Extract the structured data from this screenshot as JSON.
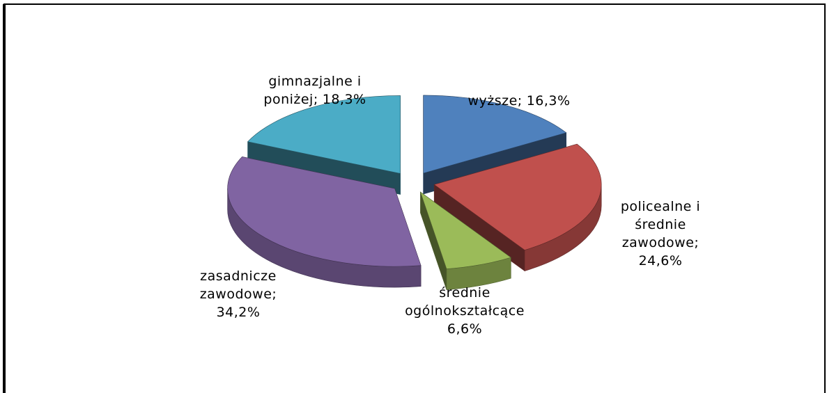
{
  "chart_data": {
    "type": "pie3d",
    "categories": [
      "wyższe;",
      "policealne i średnie zawodowe;",
      "średnie ogólnokształcące",
      "zasadnicze zawodowe;",
      "gimnazjalne i poniżej;"
    ],
    "values": [
      16.3,
      24.6,
      6.6,
      34.2,
      18.3
    ],
    "value_labels": [
      "16,3%",
      "24,6%",
      "6,6%",
      "34,2%",
      "18,3%"
    ],
    "colors": [
      "#4f81bd",
      "#c0504d",
      "#9bbb59",
      "#8064a2",
      "#4bacc6"
    ]
  }
}
